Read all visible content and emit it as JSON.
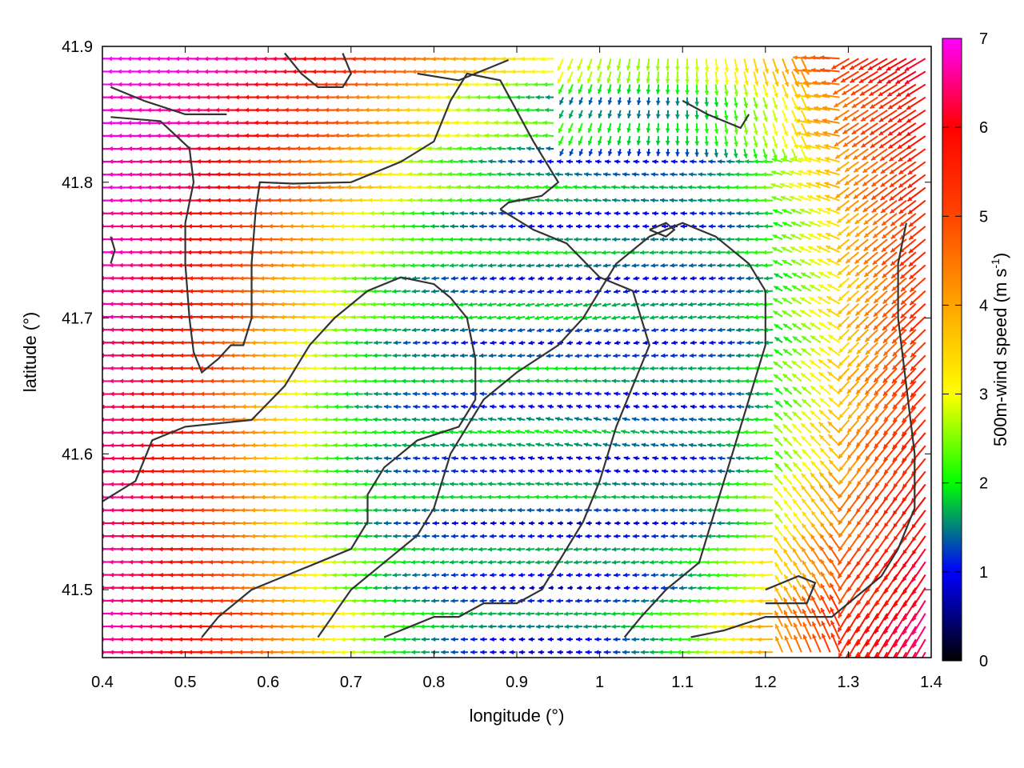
{
  "chart_data": {
    "type": "vector-field",
    "xlabel": "longitude (°)",
    "ylabel": "latitude (°)",
    "xlim": [
      0.4,
      1.4
    ],
    "ylim": [
      41.45,
      41.9
    ],
    "xticks": [
      0.4,
      0.5,
      0.6,
      0.7,
      0.8,
      0.9,
      1.0,
      1.1,
      1.2,
      1.3,
      1.4
    ],
    "xtick_labels": [
      "0.4",
      "0.5",
      "0.6",
      "0.7",
      "0.8",
      "0.9",
      "1",
      "1.1",
      "1.2",
      "1.3",
      "1.4"
    ],
    "yticks": [
      41.5,
      41.6,
      41.7,
      41.8,
      41.9
    ],
    "ytick_labels": [
      "41.5",
      "41.6",
      "41.7",
      "41.8",
      "41.9"
    ],
    "colorbar": {
      "label_main": "500m-wind speed (m s",
      "label_sup": "-1",
      "label_close": ")",
      "min": 0,
      "max": 7,
      "ticks": [
        0,
        1,
        2,
        3,
        4,
        5,
        6,
        7
      ],
      "tick_labels": [
        "0",
        "1",
        "2",
        "3",
        "4",
        "5",
        "6",
        "7"
      ],
      "colors": [
        "#000000",
        "#0000ff",
        "#00ff00",
        "#ffff00",
        "#ffa500",
        "#ff4500",
        "#ff0000",
        "#ff00ff"
      ]
    },
    "grid": false,
    "wind_field": {
      "direction": "predominantly westward (from east)",
      "low_speed_centers": [
        {
          "lon": 0.92,
          "lat": 41.53,
          "speed": 0.5
        },
        {
          "lon": 1.02,
          "lat": 41.66,
          "speed": 0.6
        },
        {
          "lon": 1.05,
          "lat": 41.78,
          "speed": 1.2
        },
        {
          "lon": 0.86,
          "lat": 41.63,
          "speed": 1.5
        }
      ],
      "background_speed": 7,
      "calm_radius_deg": 0.32
    },
    "contour_lines": [
      [
        [
          0.41,
          41.848
        ],
        [
          0.47,
          41.845
        ],
        [
          0.505,
          41.825
        ],
        [
          0.51,
          41.8
        ],
        [
          0.5,
          41.77
        ],
        [
          0.5,
          41.74
        ],
        [
          0.505,
          41.7
        ],
        [
          0.51,
          41.675
        ],
        [
          0.52,
          41.66
        ],
        [
          0.54,
          41.67
        ],
        [
          0.555,
          41.68
        ],
        [
          0.57,
          41.68
        ],
        [
          0.58,
          41.7
        ],
        [
          0.58,
          41.74
        ],
        [
          0.585,
          41.78
        ],
        [
          0.59,
          41.8
        ],
        [
          0.63,
          41.799
        ],
        [
          0.7,
          41.8
        ],
        [
          0.76,
          41.815
        ],
        [
          0.8,
          41.83
        ],
        [
          0.82,
          41.86
        ],
        [
          0.84,
          41.88
        ],
        [
          0.88,
          41.875
        ],
        [
          0.92,
          41.83
        ],
        [
          0.95,
          41.8
        ],
        [
          0.93,
          41.79
        ],
        [
          0.89,
          41.785
        ],
        [
          0.88,
          41.78
        ]
      ],
      [
        [
          0.88,
          41.78
        ],
        [
          0.92,
          41.765
        ],
        [
          0.96,
          41.755
        ],
        [
          1.0,
          41.73
        ],
        [
          1.04,
          41.72
        ],
        [
          1.05,
          41.7
        ],
        [
          1.06,
          41.68
        ],
        [
          1.04,
          41.65
        ],
        [
          1.02,
          41.62
        ],
        [
          1.0,
          41.58
        ],
        [
          0.98,
          41.55
        ],
        [
          0.95,
          41.52
        ],
        [
          0.93,
          41.5
        ],
        [
          0.9,
          41.49
        ],
        [
          0.86,
          41.49
        ],
        [
          0.83,
          41.48
        ],
        [
          0.8,
          41.48
        ],
        [
          0.76,
          41.47
        ],
        [
          0.74,
          41.465
        ]
      ],
      [
        [
          0.4,
          41.565
        ],
        [
          0.44,
          41.58
        ],
        [
          0.46,
          41.61
        ],
        [
          0.5,
          41.62
        ],
        [
          0.58,
          41.625
        ],
        [
          0.62,
          41.65
        ],
        [
          0.65,
          41.68
        ],
        [
          0.68,
          41.7
        ],
        [
          0.72,
          41.72
        ],
        [
          0.76,
          41.73
        ],
        [
          0.8,
          41.725
        ],
        [
          0.82,
          41.715
        ],
        [
          0.84,
          41.7
        ],
        [
          0.85,
          41.67
        ],
        [
          0.85,
          41.64
        ],
        [
          0.83,
          41.62
        ],
        [
          0.78,
          41.61
        ],
        [
          0.74,
          41.59
        ],
        [
          0.72,
          41.57
        ],
        [
          0.72,
          41.55
        ],
        [
          0.7,
          41.53
        ],
        [
          0.66,
          41.52
        ],
        [
          0.62,
          41.51
        ],
        [
          0.58,
          41.5
        ],
        [
          0.54,
          41.48
        ],
        [
          0.52,
          41.465
        ]
      ],
      [
        [
          0.66,
          41.465
        ],
        [
          0.7,
          41.5
        ],
        [
          0.74,
          41.52
        ],
        [
          0.78,
          41.54
        ],
        [
          0.8,
          41.56
        ],
        [
          0.82,
          41.6
        ],
        [
          0.84,
          41.62
        ],
        [
          0.86,
          41.64
        ],
        [
          0.9,
          41.66
        ],
        [
          0.95,
          41.68
        ],
        [
          0.98,
          41.7
        ],
        [
          1.0,
          41.72
        ],
        [
          1.02,
          41.74
        ],
        [
          1.06,
          41.76
        ],
        [
          1.1,
          41.77
        ],
        [
          1.14,
          41.76
        ],
        [
          1.18,
          41.74
        ],
        [
          1.2,
          41.72
        ],
        [
          1.2,
          41.68
        ],
        [
          1.18,
          41.64
        ],
        [
          1.16,
          41.6
        ],
        [
          1.14,
          41.56
        ],
        [
          1.12,
          41.52
        ],
        [
          1.08,
          41.5
        ],
        [
          1.05,
          41.48
        ],
        [
          1.03,
          41.465
        ]
      ],
      [
        [
          1.11,
          41.465
        ],
        [
          1.15,
          41.47
        ],
        [
          1.2,
          41.48
        ],
        [
          1.25,
          41.48
        ],
        [
          1.28,
          41.48
        ],
        [
          1.3,
          41.49
        ],
        [
          1.32,
          41.5
        ],
        [
          1.34,
          41.51
        ],
        [
          1.36,
          41.53
        ],
        [
          1.38,
          41.56
        ],
        [
          1.38,
          41.6
        ],
        [
          1.37,
          41.65
        ],
        [
          1.36,
          41.7
        ],
        [
          1.36,
          41.74
        ],
        [
          1.37,
          41.77
        ]
      ],
      [
        [
          0.78,
          41.88
        ],
        [
          0.83,
          41.875
        ],
        [
          0.87,
          41.885
        ],
        [
          0.89,
          41.89
        ]
      ],
      [
        [
          0.62,
          41.895
        ],
        [
          0.64,
          41.88
        ],
        [
          0.66,
          41.87
        ],
        [
          0.69,
          41.87
        ],
        [
          0.7,
          41.88
        ],
        [
          0.69,
          41.895
        ]
      ],
      [
        [
          1.1,
          41.86
        ],
        [
          1.13,
          41.85
        ],
        [
          1.17,
          41.84
        ],
        [
          1.18,
          41.85
        ]
      ],
      [
        [
          0.41,
          41.87
        ],
        [
          0.45,
          41.86
        ],
        [
          0.5,
          41.85
        ],
        [
          0.55,
          41.85
        ]
      ],
      [
        [
          1.06,
          41.765
        ],
        [
          1.08,
          41.76
        ],
        [
          1.09,
          41.765
        ],
        [
          1.08,
          41.77
        ],
        [
          1.06,
          41.765
        ]
      ],
      [
        [
          1.2,
          41.5
        ],
        [
          1.24,
          41.51
        ],
        [
          1.26,
          41.505
        ],
        [
          1.25,
          41.49
        ],
        [
          1.2,
          41.49
        ]
      ],
      [
        [
          0.41,
          41.76
        ],
        [
          0.415,
          41.75
        ],
        [
          0.41,
          41.74
        ]
      ]
    ]
  }
}
